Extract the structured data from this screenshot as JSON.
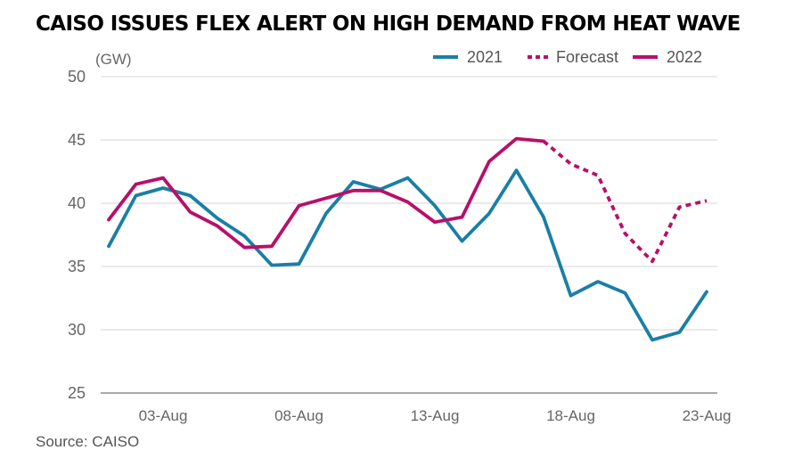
{
  "title": "CAISO ISSUES FLEX ALERT ON HIGH DEMAND FROM HEAT WAVE",
  "source": "Source: CAISO",
  "chart_data": {
    "type": "line",
    "title": "CAISO ISSUES FLEX ALERT ON HIGH DEMAND FROM HEAT WAVE",
    "ylabel": "(GW)",
    "xlabel": "",
    "x": [
      "01-Aug",
      "02-Aug",
      "03-Aug",
      "04-Aug",
      "05-Aug",
      "06-Aug",
      "07-Aug",
      "08-Aug",
      "09-Aug",
      "10-Aug",
      "11-Aug",
      "12-Aug",
      "13-Aug",
      "14-Aug",
      "15-Aug",
      "16-Aug",
      "17-Aug",
      "18-Aug",
      "19-Aug",
      "20-Aug",
      "21-Aug",
      "22-Aug",
      "23-Aug"
    ],
    "x_ticks": [
      "03-Aug",
      "08-Aug",
      "13-Aug",
      "18-Aug",
      "23-Aug"
    ],
    "y_ticks": [
      50,
      45,
      40,
      35,
      30,
      25
    ],
    "ylim": [
      25,
      50
    ],
    "grid": "horizontal",
    "legend_position": "top-right",
    "series": [
      {
        "name": "2021",
        "color": "#1a7fa5",
        "style": "solid",
        "values": [
          36.6,
          40.6,
          41.2,
          40.6,
          38.8,
          37.4,
          35.1,
          35.2,
          39.2,
          41.7,
          41.1,
          42.0,
          39.8,
          37.0,
          39.2,
          42.6,
          38.9,
          32.7,
          33.8,
          32.9,
          29.2,
          29.8,
          33.0
        ]
      },
      {
        "name": "Forecast",
        "color": "#b80f6a",
        "style": "dotted",
        "values": [
          null,
          null,
          null,
          null,
          null,
          null,
          null,
          null,
          null,
          null,
          null,
          null,
          null,
          null,
          null,
          null,
          44.9,
          43.1,
          42.2,
          37.6,
          35.4,
          39.7,
          40.2
        ]
      },
      {
        "name": "2022",
        "color": "#b80f6a",
        "style": "solid",
        "values": [
          38.7,
          41.5,
          42.0,
          39.3,
          38.2,
          36.5,
          36.6,
          39.8,
          40.4,
          41.0,
          41.0,
          40.1,
          38.5,
          38.9,
          43.3,
          45.1,
          44.9,
          null,
          null,
          null,
          null,
          null,
          null
        ]
      }
    ]
  }
}
